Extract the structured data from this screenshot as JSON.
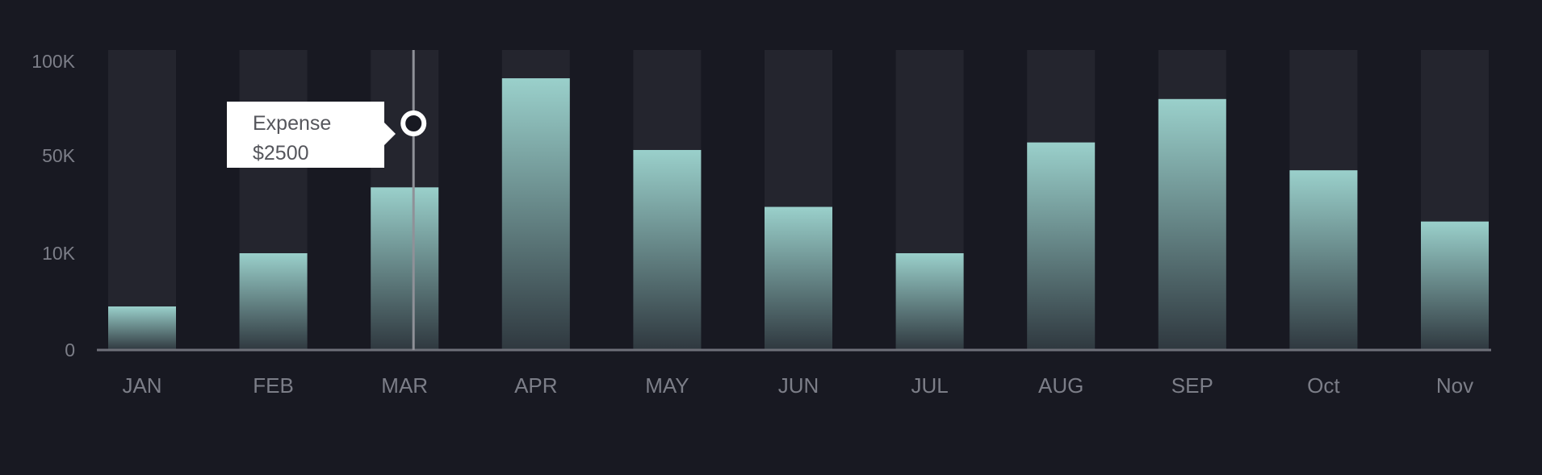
{
  "colors": {
    "background": "#181922",
    "track": "#24252e",
    "bar_top": "#9ad0cb",
    "bar_bottom": "#2f383f",
    "axis": "#6e7079",
    "label": "#7c7e88",
    "cursor": "#8f9198"
  },
  "tooltip": {
    "label": "Expense",
    "value": "$2500"
  },
  "hover": {
    "category": "MAR",
    "value": 75000
  },
  "chart_data": {
    "type": "bar",
    "title": "",
    "xlabel": "",
    "ylabel": "",
    "ylim": [
      0,
      100000
    ],
    "yscale": "piecewise (ticks equally spaced)",
    "y_ticks": [
      0,
      10000,
      50000,
      100000
    ],
    "y_tick_labels": [
      "0",
      "10K",
      "50K",
      "100K"
    ],
    "categories": [
      "JAN",
      "FEB",
      "MAR",
      "APR",
      "MAY",
      "JUN",
      "JUL",
      "AUG",
      "SEP",
      "Oct",
      "Nov"
    ],
    "series": [
      {
        "name": "Expense",
        "values": [
          4500,
          10000,
          37000,
          91000,
          53000,
          29000,
          10000,
          57000,
          80000,
          44000,
          23000
        ]
      }
    ],
    "background_track_max": 100000,
    "grid": false,
    "legend": "none"
  }
}
